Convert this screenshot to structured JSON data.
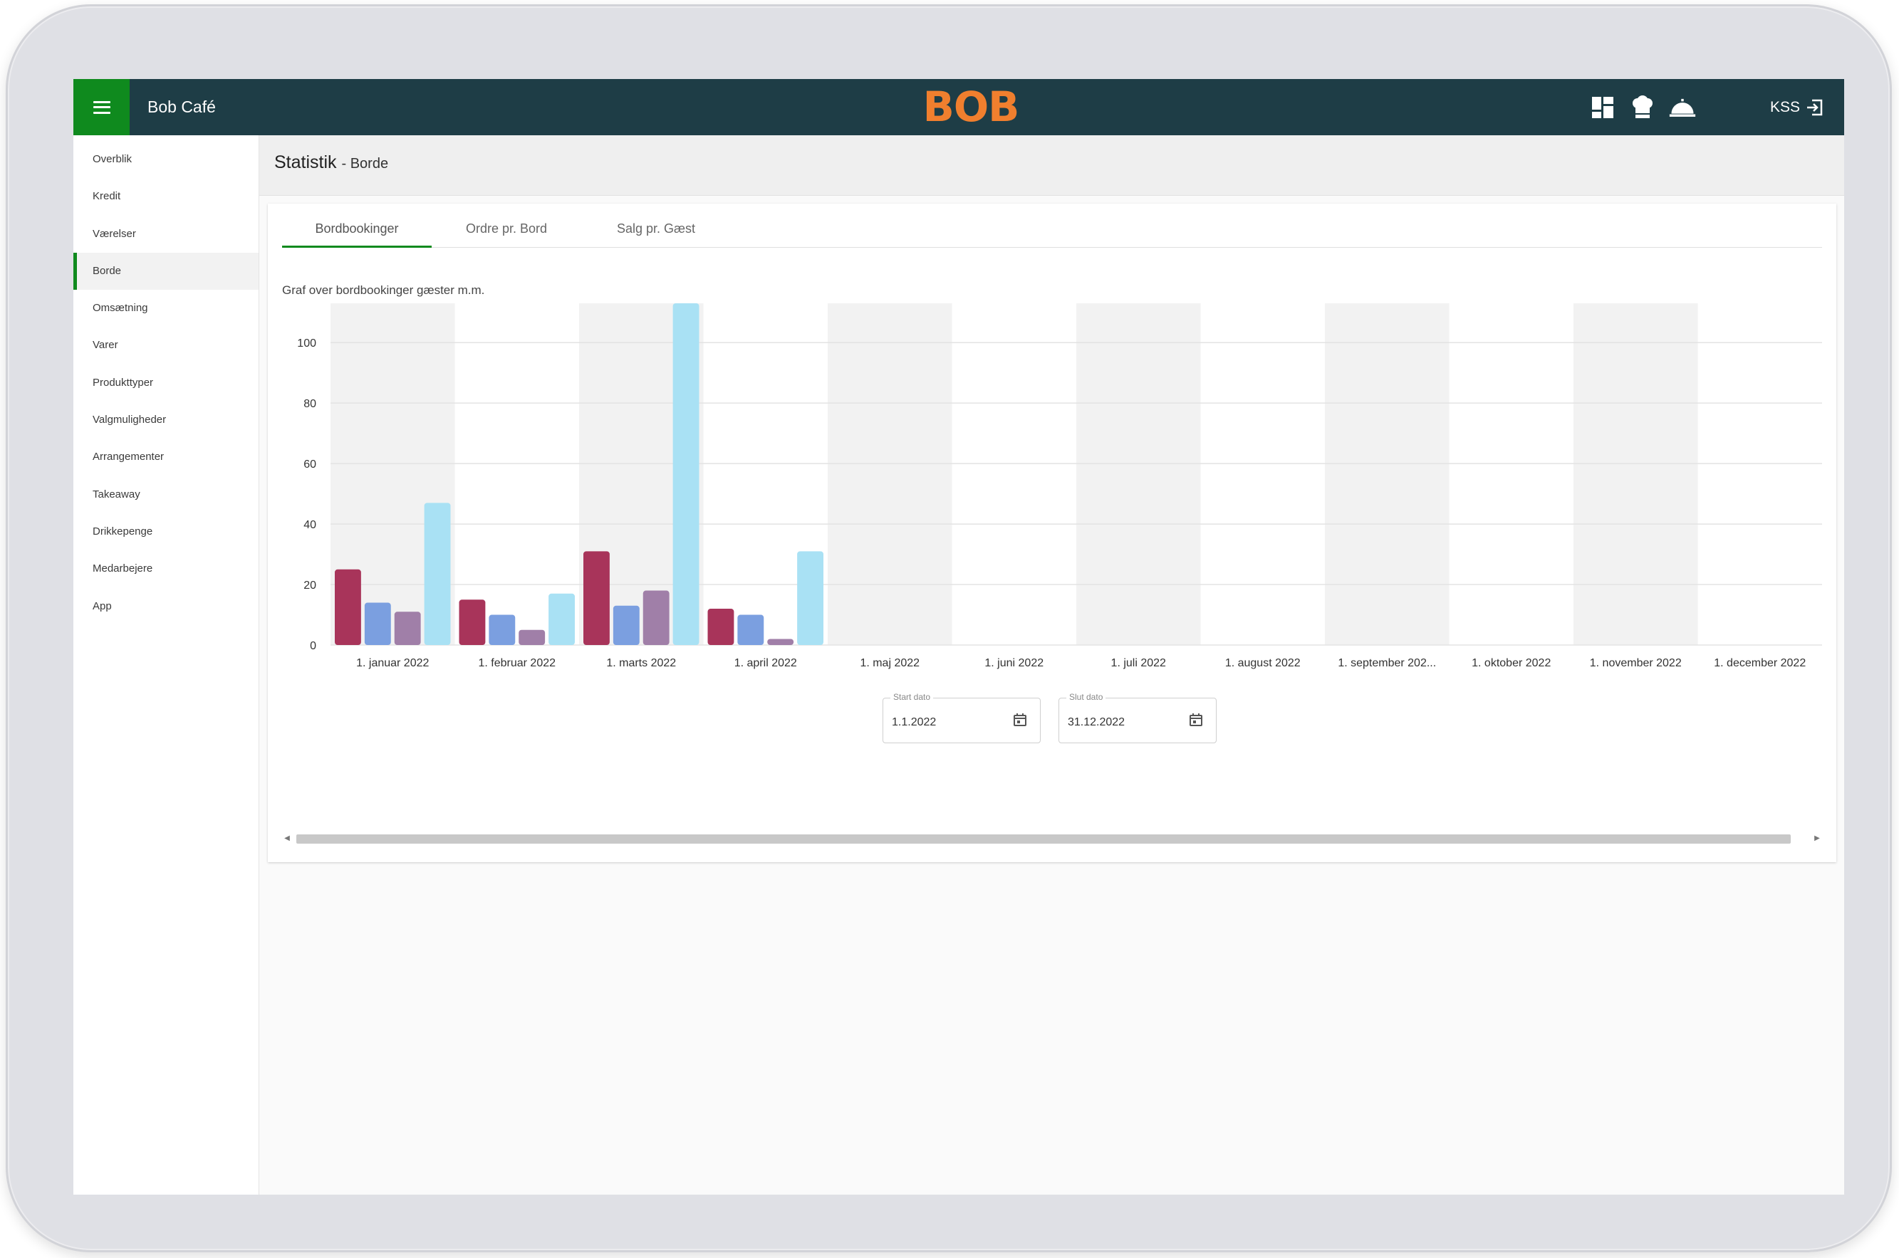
{
  "header": {
    "app_title": "Bob Café",
    "logo_text": "BOB",
    "icons": [
      "dashboard-icon",
      "chef-hat-icon",
      "service-bell-icon"
    ],
    "user_initials": "KSS"
  },
  "sidebar": {
    "items": [
      {
        "label": "Overblik",
        "active": false
      },
      {
        "label": "Kredit",
        "active": false
      },
      {
        "label": "Værelser",
        "active": false
      },
      {
        "label": "Borde",
        "active": true
      },
      {
        "label": "Omsætning",
        "active": false
      },
      {
        "label": "Varer",
        "active": false
      },
      {
        "label": "Produkttyper",
        "active": false
      },
      {
        "label": "Valgmuligheder",
        "active": false
      },
      {
        "label": "Arrangementer",
        "active": false
      },
      {
        "label": "Takeaway",
        "active": false
      },
      {
        "label": "Drikkepenge",
        "active": false
      },
      {
        "label": "Medarbejere",
        "active": false
      },
      {
        "label": "App",
        "active": false
      }
    ]
  },
  "page": {
    "title": "Statistik",
    "subtitle": "- Borde"
  },
  "tabs": [
    {
      "label": "Bordbookinger",
      "active": true
    },
    {
      "label": "Ordre pr. Bord",
      "active": false
    },
    {
      "label": "Salg pr. Gæst",
      "active": false
    }
  ],
  "chart_description": "Graf over bordbookinger gæster m.m.",
  "chart_data": {
    "type": "bar",
    "categories": [
      "1. januar 2022",
      "1. februar 2022",
      "1. marts 2022",
      "1. april 2022",
      "1. maj 2022",
      "1. juni 2022",
      "1. juli 2022",
      "1. august 2022",
      "1. september 202...",
      "1. oktober 2022",
      "1. november 2022",
      "1. december 2022"
    ],
    "series": [
      {
        "values": [
          25,
          15,
          31,
          12,
          0,
          0,
          0,
          0,
          0,
          0,
          0,
          0
        ],
        "color": "#a8345a"
      },
      {
        "values": [
          14,
          10,
          13,
          10,
          0,
          0,
          0,
          0,
          0,
          0,
          0,
          0
        ],
        "color": "#7b9fe0"
      },
      {
        "values": [
          11,
          5,
          18,
          2,
          0,
          0,
          0,
          0,
          0,
          0,
          0,
          0
        ],
        "color": "#a07fa8"
      },
      {
        "values": [
          47,
          17,
          113,
          31,
          0,
          0,
          0,
          0,
          0,
          0,
          0,
          0
        ],
        "color": "#a9e1f4"
      }
    ],
    "y_ticks": [
      0,
      20,
      40,
      60,
      80,
      100
    ],
    "ylim": [
      0,
      113
    ],
    "grid": true,
    "alternating_band_color": "#f2f2f2",
    "legend": "none"
  },
  "date_range": {
    "start": {
      "label": "Start dato",
      "value": "1.1.2022"
    },
    "end": {
      "label": "Slut dato",
      "value": "31.12.2022"
    }
  },
  "colors": {
    "header_bg": "#1e3d46",
    "accent_green": "#0f8a1e",
    "logo_orange": "#f07f2e"
  }
}
